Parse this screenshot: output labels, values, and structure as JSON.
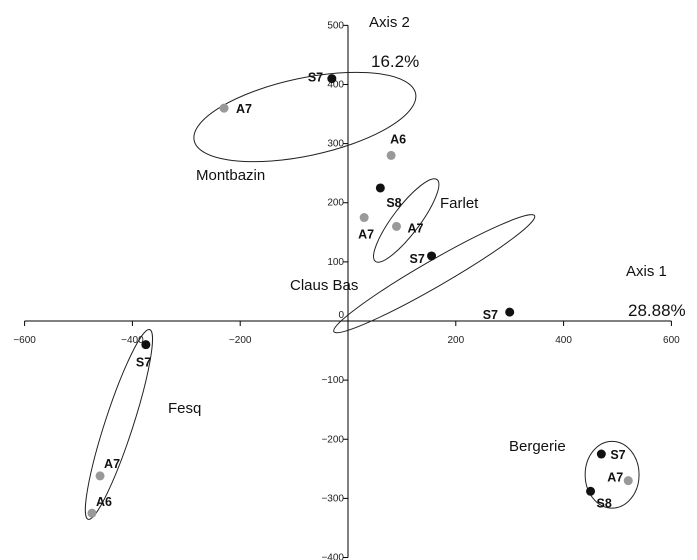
{
  "chart_data": {
    "type": "scatter",
    "x_axis": {
      "title": "Axis 1",
      "percent": "28.88%",
      "range": [
        -600,
        600
      ],
      "ticks": [
        -600,
        -400,
        -200,
        0,
        200,
        400,
        600
      ]
    },
    "y_axis": {
      "title": "Axis 2",
      "percent": "16.2%",
      "range": [
        -400,
        500
      ],
      "ticks": [
        -400,
        -300,
        -200,
        -100,
        0,
        100,
        200,
        300,
        400,
        500
      ]
    },
    "grid": false,
    "colors": {
      "S": "#111111",
      "A": "#999999",
      "axis": "#000000",
      "ellipse": "#222222"
    },
    "groups": [
      {
        "name": "Montbazin",
        "ellipse": {
          "cx": -80,
          "cy": 345,
          "rx": 210,
          "ry": 72,
          "angle": 12
        },
        "points": [
          {
            "label": "S7",
            "x": -30,
            "y": 410,
            "kind": "S"
          },
          {
            "label": "A7",
            "x": -230,
            "y": 360,
            "kind": "A"
          },
          {
            "label": "A6",
            "x": 80,
            "y": 280,
            "kind": "A"
          }
        ]
      },
      {
        "name": "Farlet",
        "ellipse": {
          "cx": 108,
          "cy": 170,
          "rx": 95,
          "ry": 25,
          "angle": 53
        },
        "points": [
          {
            "label": "S8",
            "x": 60,
            "y": 225,
            "kind": "S"
          },
          {
            "label": "A7",
            "x": 90,
            "y": 160,
            "kind": "A"
          },
          {
            "label": "S7",
            "x": 155,
            "y": 110,
            "kind": "S"
          }
        ]
      },
      {
        "name": "Claus Bas",
        "ellipse": {
          "cx": 160,
          "cy": 80,
          "rx": 215,
          "ry": 24,
          "angle": 30
        },
        "points": [
          {
            "label": "A7",
            "x": 30,
            "y": 175,
            "kind": "A"
          },
          {
            "label": "S7",
            "x": 300,
            "y": 15,
            "kind": "S"
          }
        ]
      },
      {
        "name": "Fesq",
        "ellipse": {
          "cx": -425,
          "cy": -175,
          "rx": 185,
          "ry": 26,
          "angle": 72
        },
        "points": [
          {
            "label": "S7",
            "x": -375,
            "y": -40,
            "kind": "S"
          },
          {
            "label": "A7",
            "x": -460,
            "y": -262,
            "kind": "A"
          },
          {
            "label": "A6",
            "x": -475,
            "y": -325,
            "kind": "A"
          }
        ]
      },
      {
        "name": "Bergerie",
        "ellipse": {
          "cx": 490,
          "cy": -260,
          "rx": 50,
          "ry": 62,
          "angle": 0
        },
        "points": [
          {
            "label": "S7",
            "x": 470,
            "y": -225,
            "kind": "S"
          },
          {
            "label": "A7",
            "x": 520,
            "y": -270,
            "kind": "A"
          },
          {
            "label": "S8",
            "x": 450,
            "y": -288,
            "kind": "S"
          }
        ]
      }
    ]
  }
}
